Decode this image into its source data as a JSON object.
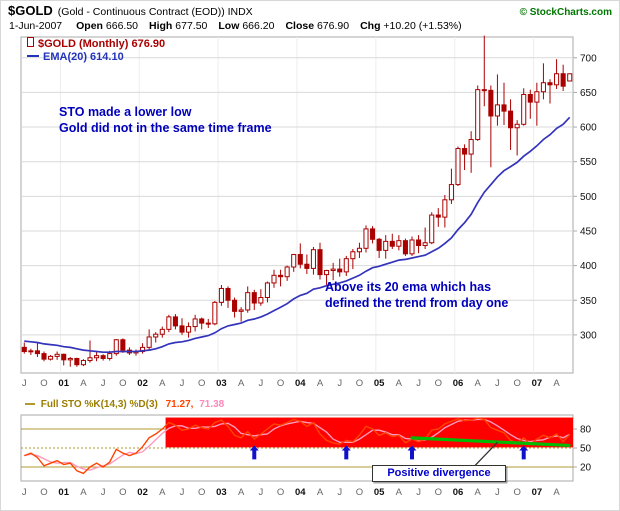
{
  "header": {
    "symbol": "$GOLD",
    "description": "(Gold - Continuous Contract (EOD)) INDX",
    "copyright": "© StockCharts.com",
    "date": "1-Jun-2007",
    "quote": [
      {
        "label": "Open",
        "value": "666.50"
      },
      {
        "label": "High",
        "value": "677.50"
      },
      {
        "label": "Low",
        "value": "666.20"
      },
      {
        "label": "Close",
        "value": "676.90"
      },
      {
        "label": "Chg",
        "value": "+10.20 (+1.53%)"
      }
    ]
  },
  "legend": {
    "price_label": "$GOLD (Monthly) 676.90",
    "ema_label": "EMA(20) 614.10"
  },
  "annotations": {
    "sto_line1": "STO made a lower low",
    "sto_line2": "Gold did not in the same time frame",
    "ema_line1": "Above its 20 ema which has",
    "ema_line2": "defined the trend from day one",
    "divergence_label": "Positive divergence"
  },
  "indicator_header": {
    "label": "Full STO %K(14,3) %D(3)",
    "value_k": "71.27,",
    "value_d": "71.38"
  },
  "colors": {
    "candle": "#aa0000",
    "ema": "#3333bb",
    "grid": "#d9d9d9",
    "grid_v": "#ededed",
    "frame": "#aaaaaa",
    "axis_text": "#111111",
    "axis_month": "#666666",
    "axis_year": "#111111",
    "red_zone": "#ff0000",
    "sto_k": "#ff4400",
    "sto_d": "#ff99bb",
    "ob_os": "#b09a30",
    "trend": "#00bb00",
    "arrow": "#1111cc",
    "annotation": "#0000bb",
    "callout_line": "#333333",
    "copyright": "#007700"
  },
  "chart_data": [
    {
      "type": "candlestick",
      "title": "$GOLD (Monthly)",
      "interval": "monthly",
      "x_start": "Jul-2000",
      "x_tick_step": 3,
      "x_tick_labels": [
        "J",
        "O",
        "01",
        "A",
        "J",
        "O",
        "02",
        "A",
        "J",
        "O",
        "03",
        "A",
        "J",
        "O",
        "04",
        "A",
        "J",
        "O",
        "05",
        "A",
        "J",
        "O",
        "06",
        "A",
        "J",
        "O",
        "07",
        "A"
      ],
      "ylim": [
        245,
        730
      ],
      "y_ticks": [
        300,
        350,
        400,
        450,
        500,
        550,
        600,
        650,
        700
      ],
      "grid": true,
      "open": [
        282,
        276,
        277,
        273,
        265,
        269,
        272,
        264,
        266,
        257,
        263,
        267,
        270,
        266,
        273,
        293,
        278,
        274,
        276,
        282,
        297,
        301,
        308,
        326,
        313,
        304,
        312,
        323,
        317,
        316,
        347,
        367,
        350,
        334,
        336,
        361,
        346,
        354,
        375,
        386,
        384,
        398,
        416,
        402,
        396,
        423,
        387,
        393,
        395,
        391,
        410,
        420,
        425,
        453,
        438,
        422,
        435,
        428,
        436,
        417,
        437,
        429,
        433,
        473,
        470,
        495,
        517,
        569,
        561,
        582,
        654,
        653,
        616,
        632,
        623,
        599,
        604,
        647,
        636,
        651,
        664,
        661,
        677,
        666.5
      ],
      "high": [
        289,
        280,
        289,
        276,
        271,
        276,
        273,
        268,
        267,
        265,
        292,
        275,
        272,
        277,
        294,
        295,
        282,
        279,
        288,
        308,
        304,
        312,
        329,
        330,
        324,
        318,
        329,
        325,
        323,
        349,
        372,
        370,
        354,
        340,
        370,
        365,
        366,
        377,
        394,
        394,
        400,
        417,
        432,
        416,
        427,
        433,
        394,
        404,
        410,
        414,
        424,
        433,
        458,
        457,
        440,
        444,
        446,
        444,
        439,
        442,
        444,
        455,
        477,
        483,
        502,
        540,
        572,
        575,
        594,
        660,
        732,
        660,
        676,
        664,
        640,
        610,
        656,
        654,
        664,
        692,
        669,
        698,
        690,
        677.5
      ],
      "low": [
        273,
        271,
        268,
        262,
        263,
        264,
        256,
        254,
        254,
        255,
        260,
        262,
        263,
        263,
        270,
        274,
        271,
        270,
        273,
        278,
        289,
        296,
        304,
        308,
        300,
        296,
        305,
        308,
        310,
        314,
        342,
        339,
        325,
        319,
        332,
        336,
        342,
        347,
        368,
        370,
        378,
        391,
        396,
        388,
        387,
        380,
        371,
        379,
        384,
        385,
        395,
        411,
        419,
        432,
        411,
        410,
        424,
        422,
        414,
        414,
        418,
        424,
        431,
        456,
        455,
        489,
        515,
        538,
        534,
        580,
        630,
        542,
        602,
        603,
        567,
        559,
        602,
        612,
        602,
        640,
        634,
        655,
        652,
        666.2
      ],
      "close": [
        276,
        277,
        273,
        265,
        269,
        272,
        264,
        266,
        257,
        263,
        267,
        270,
        266,
        273,
        293,
        278,
        274,
        276,
        282,
        297,
        301,
        308,
        326,
        313,
        304,
        312,
        323,
        317,
        316,
        347,
        367,
        350,
        334,
        336,
        361,
        346,
        354,
        375,
        386,
        384,
        398,
        416,
        402,
        396,
        423,
        387,
        393,
        395,
        391,
        410,
        420,
        425,
        453,
        438,
        422,
        435,
        428,
        436,
        417,
        437,
        429,
        433,
        473,
        470,
        495,
        517,
        569,
        561,
        582,
        654,
        653,
        616,
        632,
        623,
        599,
        604,
        647,
        636,
        651,
        664,
        661,
        677,
        659,
        676.9
      ],
      "ema20": [
        291,
        290,
        289,
        287,
        286,
        285,
        283,
        282,
        280,
        278,
        277,
        276,
        275,
        275,
        276,
        276,
        276,
        276,
        277,
        278,
        280,
        283,
        287,
        289,
        290,
        292,
        295,
        297,
        299,
        303,
        309,
        313,
        315,
        317,
        321,
        323,
        326,
        330,
        335,
        340,
        345,
        352,
        357,
        360,
        366,
        368,
        371,
        373,
        375,
        378,
        382,
        386,
        392,
        397,
        399,
        402,
        405,
        408,
        409,
        411,
        413,
        415,
        420,
        425,
        432,
        440,
        452,
        462,
        474,
        491,
        506,
        517,
        528,
        537,
        543,
        549,
        558,
        565,
        573,
        582,
        589,
        598,
        604,
        614.1
      ]
    },
    {
      "type": "line",
      "title": "Full STO %K(14,3) %D(3)",
      "ylim": [
        0,
        100
      ],
      "y_ticks": [
        80,
        50,
        20
      ],
      "k_values": [
        38,
        42,
        35,
        22,
        26,
        30,
        24,
        26,
        14,
        10,
        20,
        26,
        20,
        28,
        48,
        42,
        38,
        42,
        52,
        66,
        72,
        80,
        90,
        86,
        78,
        80,
        86,
        82,
        80,
        90,
        94,
        84,
        70,
        66,
        76,
        64,
        72,
        80,
        88,
        86,
        90,
        95,
        92,
        84,
        90,
        72,
        62,
        58,
        56,
        62,
        60,
        70,
        84,
        80,
        70,
        74,
        68,
        70,
        58,
        64,
        60,
        64,
        78,
        80,
        88,
        92,
        96,
        93,
        94,
        97,
        95,
        82,
        78,
        74,
        62,
        58,
        66,
        56,
        64,
        70,
        66,
        72,
        60,
        71.27
      ],
      "d_values": [
        38,
        40,
        38,
        33,
        28,
        26,
        27,
        27,
        21,
        17,
        15,
        19,
        22,
        25,
        32,
        39,
        43,
        41,
        44,
        53,
        63,
        73,
        81,
        85,
        85,
        81,
        81,
        83,
        83,
        84,
        88,
        89,
        83,
        73,
        71,
        69,
        71,
        72,
        80,
        85,
        88,
        90,
        92,
        90,
        89,
        82,
        75,
        64,
        59,
        59,
        59,
        64,
        71,
        78,
        78,
        75,
        71,
        71,
        65,
        64,
        61,
        63,
        67,
        74,
        82,
        87,
        92,
        94,
        94,
        95,
        95,
        91,
        85,
        78,
        71,
        65,
        62,
        60,
        62,
        63,
        67,
        69,
        66,
        71.38
      ],
      "red_zone": {
        "start_index": 22,
        "top": 98,
        "bottom": 51
      },
      "trendline": {
        "x1_index": 59,
        "v1": 66,
        "x2_index": 83,
        "v2": 54
      },
      "arrows": [
        35,
        49,
        59,
        76
      ],
      "arrow_tip": 54,
      "arrow_base": 32,
      "callout": {
        "x1_index": 72,
        "v1": 59,
        "x2_index": 68,
        "v2": 16
      }
    }
  ]
}
